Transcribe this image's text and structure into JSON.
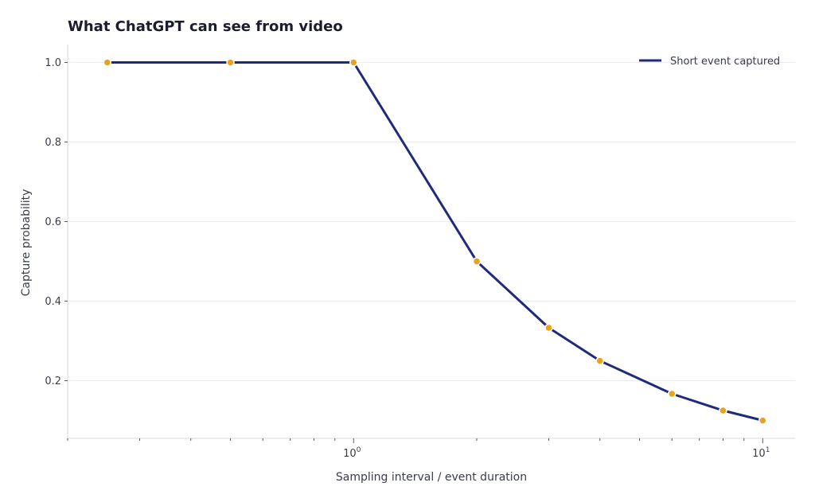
{
  "chart_data": {
    "type": "line",
    "title": "What ChatGPT can see from video",
    "xlabel": "Sampling interval / event duration",
    "ylabel": "Capture probability",
    "x_scale": "log",
    "xlim": [
      0.2,
      12
    ],
    "ylim": [
      0.055,
      1.045
    ],
    "grid": "y",
    "legend_position": "top-right",
    "x_ticks": [
      {
        "value": 1,
        "base": "10",
        "exp": "0"
      },
      {
        "value": 10,
        "base": "10",
        "exp": "1"
      }
    ],
    "y_ticks": [
      {
        "value": 0.2,
        "label": "0.2"
      },
      {
        "value": 0.4,
        "label": "0.4"
      },
      {
        "value": 0.6,
        "label": "0.6"
      },
      {
        "value": 0.8,
        "label": "0.8"
      },
      {
        "value": 1.0,
        "label": "1.0"
      }
    ],
    "series": [
      {
        "name": "Short event captured",
        "color": "#1f2b7a",
        "marker_color": "#e8a317",
        "x": [
          0.25,
          0.5,
          1,
          2,
          3,
          4,
          6,
          8,
          10
        ],
        "y": [
          1.0,
          1.0,
          1.0,
          0.5,
          0.333,
          0.25,
          0.167,
          0.125,
          0.1
        ]
      }
    ]
  }
}
